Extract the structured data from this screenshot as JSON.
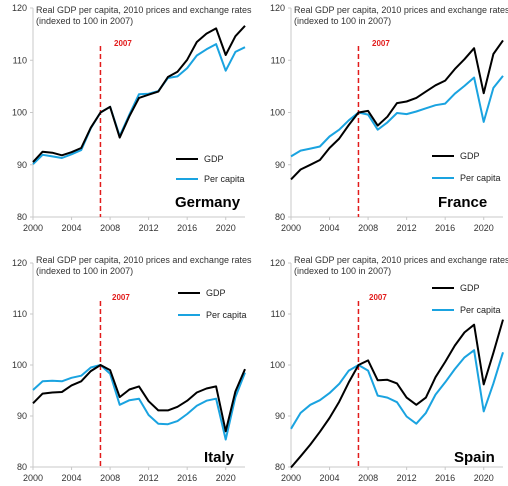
{
  "colors": {
    "gdp": "#000000",
    "per_capita": "#1aa3e0",
    "marker": "#e21b1b",
    "axis": "#c8c8c8",
    "tick_text": "#333333"
  },
  "chart_data": [
    {
      "type": "line",
      "country": "Germany",
      "annotation": [
        "Real GDP per capita, 2010 prices and exchange rates",
        "(indexed to 100 in 2007)"
      ],
      "marker_label": "2007",
      "marker_x": 2007,
      "xlim": [
        2000,
        2022
      ],
      "ylim": [
        80,
        120
      ],
      "xticks": [
        2000,
        2004,
        2008,
        2012,
        2016,
        2020
      ],
      "yticks": [
        80,
        90,
        100,
        110,
        120
      ],
      "legend_position": "right, middle-lower",
      "x": [
        2000,
        2001,
        2002,
        2003,
        2004,
        2005,
        2006,
        2007,
        2008,
        2009,
        2010,
        2011,
        2012,
        2013,
        2014,
        2015,
        2016,
        2017,
        2018,
        2019,
        2020,
        2021,
        2022
      ],
      "series": [
        {
          "name": "GDP",
          "values": [
            90.5,
            92.5,
            92.3,
            91.8,
            92.4,
            93.2,
            97.1,
            100.0,
            101.1,
            95.2,
            99.3,
            102.8,
            103.4,
            104.0,
            106.8,
            107.8,
            110.1,
            113.5,
            115.1,
            116.1,
            111.0,
            114.6,
            116.6
          ]
        },
        {
          "name": "Per capita",
          "values": [
            90.1,
            91.9,
            91.6,
            91.3,
            92.0,
            92.8,
            97.0,
            100.0,
            101.1,
            95.5,
            99.6,
            103.5,
            103.6,
            104.1,
            106.6,
            106.9,
            108.5,
            110.9,
            112.1,
            113.1,
            108.0,
            111.6,
            112.5
          ]
        }
      ]
    },
    {
      "type": "line",
      "country": "France",
      "annotation": [
        "Real GDP per capita, 2010 prices and exchange rates",
        "(indexed to 100 in 2007)"
      ],
      "marker_label": "2007",
      "marker_x": 2007,
      "xlim": [
        2000,
        2022
      ],
      "ylim": [
        80,
        120
      ],
      "xticks": [
        2000,
        2004,
        2008,
        2012,
        2016,
        2020
      ],
      "yticks": [
        80,
        90,
        100,
        110,
        120
      ],
      "legend_position": "right, middle-lower",
      "x": [
        2000,
        2001,
        2002,
        2003,
        2004,
        2005,
        2006,
        2007,
        2008,
        2009,
        2010,
        2011,
        2012,
        2013,
        2014,
        2015,
        2016,
        2017,
        2018,
        2019,
        2020,
        2021,
        2022
      ],
      "series": [
        {
          "name": "GDP",
          "values": [
            87.2,
            89.1,
            90.0,
            90.9,
            93.2,
            95.0,
            97.6,
            100.0,
            100.3,
            97.5,
            99.2,
            101.8,
            102.1,
            102.8,
            104.0,
            105.2,
            106.1,
            108.3,
            110.2,
            112.3,
            103.7,
            111.2,
            113.8
          ]
        },
        {
          "name": "Per capita",
          "values": [
            91.6,
            92.7,
            93.1,
            93.5,
            95.4,
            96.7,
            98.5,
            100.0,
            99.6,
            96.7,
            98.1,
            99.9,
            99.7,
            100.2,
            100.8,
            101.4,
            101.7,
            103.6,
            105.1,
            106.7,
            98.2,
            104.7,
            107.0
          ]
        }
      ]
    },
    {
      "type": "line",
      "country": "Italy",
      "annotation": [
        "Real GDP per capita, 2010 prices and exchange rates",
        "(indexed to 100 in 2007)"
      ],
      "marker_label": "2007",
      "marker_x": 2007,
      "xlim": [
        2000,
        2022
      ],
      "ylim": [
        80,
        120
      ],
      "xticks": [
        2000,
        2004,
        2008,
        2012,
        2016,
        2020
      ],
      "yticks": [
        80,
        90,
        100,
        110,
        120
      ],
      "legend_position": "right, upper-middle",
      "x": [
        2000,
        2001,
        2002,
        2003,
        2004,
        2005,
        2006,
        2007,
        2008,
        2009,
        2010,
        2011,
        2012,
        2013,
        2014,
        2015,
        2016,
        2017,
        2018,
        2019,
        2020,
        2021,
        2022
      ],
      "series": [
        {
          "name": "GDP",
          "values": [
            92.5,
            94.4,
            94.6,
            94.7,
            96.0,
            96.8,
            98.8,
            100.0,
            99.0,
            93.7,
            95.2,
            95.8,
            92.9,
            91.1,
            91.1,
            91.8,
            93.0,
            94.6,
            95.4,
            95.8,
            87.0,
            94.8,
            99.2
          ]
        },
        {
          "name": "Per capita",
          "values": [
            95.1,
            96.8,
            96.9,
            96.8,
            97.5,
            97.9,
            99.5,
            100.0,
            98.3,
            92.2,
            93.1,
            93.4,
            90.2,
            88.5,
            88.4,
            89.0,
            90.4,
            92.0,
            93.0,
            93.4,
            85.4,
            93.7,
            98.5
          ]
        }
      ]
    },
    {
      "type": "line",
      "country": "Spain",
      "annotation": [
        "Real GDP per capita, 2010 prices and exchange rates",
        "(indexed to 100 in 2007)"
      ],
      "marker_label": "2007",
      "marker_x": 2007,
      "xlim": [
        2000,
        2022
      ],
      "ylim": [
        80,
        120
      ],
      "xticks": [
        2000,
        2004,
        2008,
        2012,
        2016,
        2020
      ],
      "yticks": [
        80,
        90,
        100,
        110,
        120
      ],
      "legend_position": "right, upper-middle",
      "x": [
        2000,
        2001,
        2002,
        2003,
        2004,
        2005,
        2006,
        2007,
        2008,
        2009,
        2010,
        2011,
        2012,
        2013,
        2014,
        2015,
        2016,
        2017,
        2018,
        2019,
        2020,
        2021,
        2022
      ],
      "series": [
        {
          "name": "GDP",
          "values": [
            79.9,
            82.1,
            84.4,
            86.9,
            89.6,
            92.8,
            96.6,
            100.0,
            100.9,
            97.0,
            97.1,
            96.4,
            93.6,
            92.2,
            93.6,
            97.6,
            100.6,
            103.8,
            106.4,
            107.9,
            96.2,
            102.4,
            108.9
          ]
        },
        {
          "name": "Per capita",
          "values": [
            87.5,
            90.6,
            92.2,
            93.1,
            94.5,
            96.3,
            98.9,
            100.0,
            98.9,
            94.0,
            93.6,
            92.7,
            89.9,
            88.5,
            90.6,
            94.2,
            96.6,
            99.2,
            101.5,
            102.9,
            90.9,
            96.4,
            102.5
          ]
        }
      ]
    }
  ]
}
